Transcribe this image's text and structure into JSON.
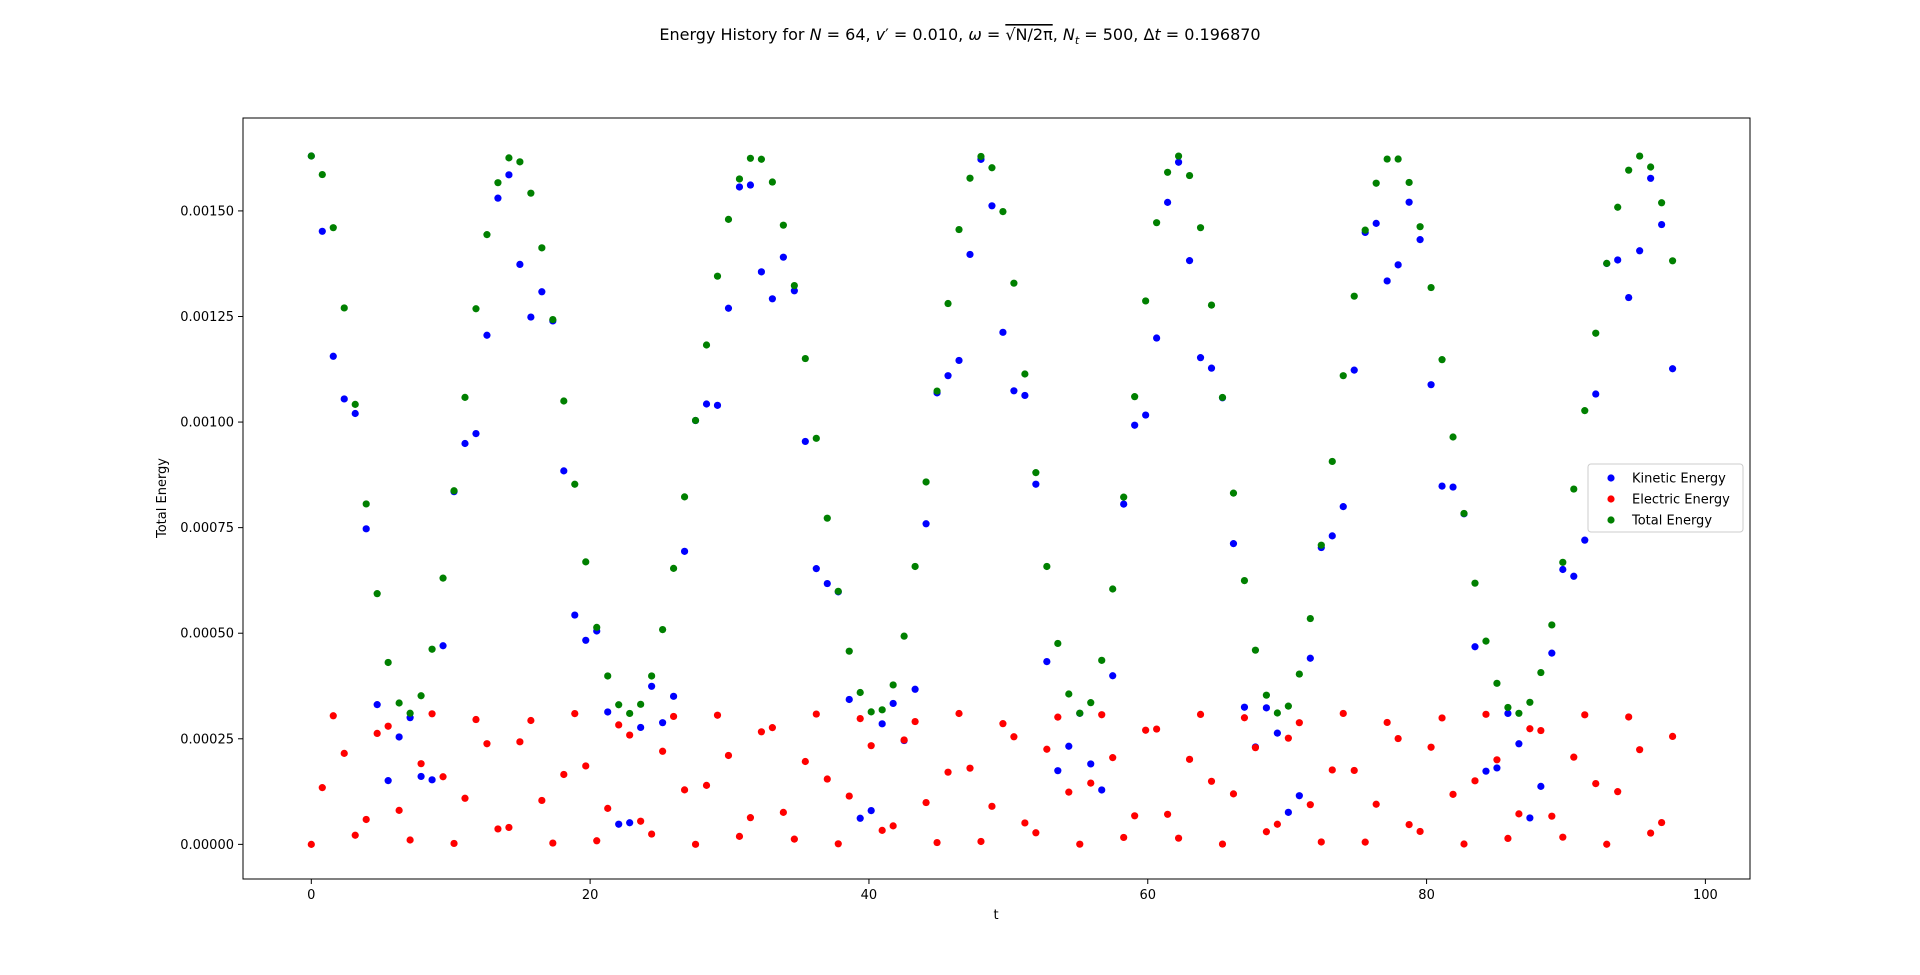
{
  "chart_data": {
    "type": "scatter",
    "title_prefix": "Energy History for ",
    "title_parts": [
      "N",
      " = 64, ",
      "v",
      "′",
      " = 0.010, ",
      "ω",
      " = ",
      "√N/2π",
      ", ",
      "N",
      "t",
      " = 500, Δ",
      "t",
      " = 0.196870"
    ],
    "xlabel": "t",
    "ylabel": "Total Energy",
    "xlim": [
      -4.9,
      103.2
    ],
    "ylim": [
      -8.2e-05,
      0.00172
    ],
    "xticks": [
      0,
      20,
      40,
      60,
      80,
      100
    ],
    "xtick_labels": [
      "0",
      "20",
      "40",
      "60",
      "80",
      "100"
    ],
    "yticks": [
      0,
      0.00025,
      0.0005,
      0.00075,
      0.001,
      0.00125,
      0.0015
    ],
    "ytick_labels": [
      "0.00000",
      "0.00025",
      "0.00050",
      "0.00075",
      "0.00100",
      "0.00125",
      "0.00150"
    ],
    "legend_position": "center-right",
    "grid": false,
    "n_steps": 500,
    "dt": 0.19687,
    "series": [
      {
        "name": "Kinetic Energy",
        "color": "#0000ff"
      },
      {
        "name": "Electric Energy",
        "color": "#ff0000"
      },
      {
        "name": "Total Energy",
        "color": "#008000"
      }
    ]
  }
}
